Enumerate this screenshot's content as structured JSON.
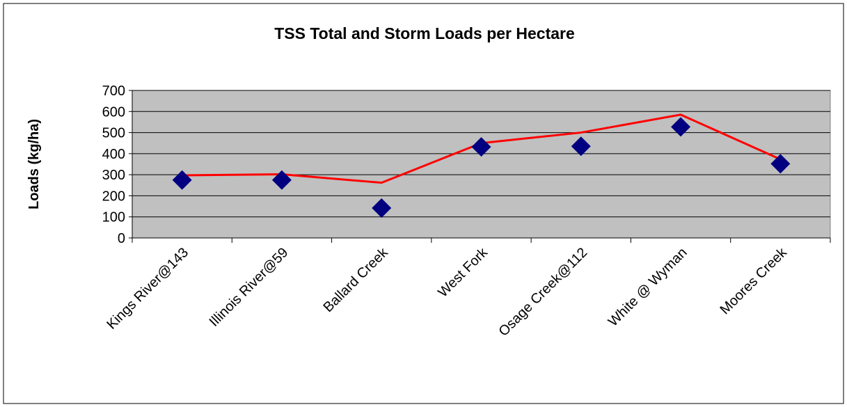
{
  "chart_data": {
    "type": "line",
    "title": "TSS Total and Storm Loads per Hectare",
    "y_label": "Loads (kg/ha)",
    "categories": [
      "Kings River@143",
      "Illinois River@59",
      "Ballard Creek",
      "West Fork",
      "Osage Creek@112",
      "White @ Wyman",
      "Moores Creek"
    ],
    "series": [
      {
        "color": "#ff0000",
        "style": "line",
        "values": [
          297,
          302,
          262,
          450,
          500,
          585,
          373
        ]
      },
      {
        "color": "#000080",
        "style": "diamond",
        "values": [
          275,
          275,
          142,
          432,
          435,
          527,
          352
        ]
      }
    ],
    "ylim": [
      0,
      700
    ],
    "yticks": [
      0,
      100,
      200,
      300,
      400,
      500,
      600,
      700
    ],
    "grid": true,
    "plot_background": "#c0c0c0"
  }
}
